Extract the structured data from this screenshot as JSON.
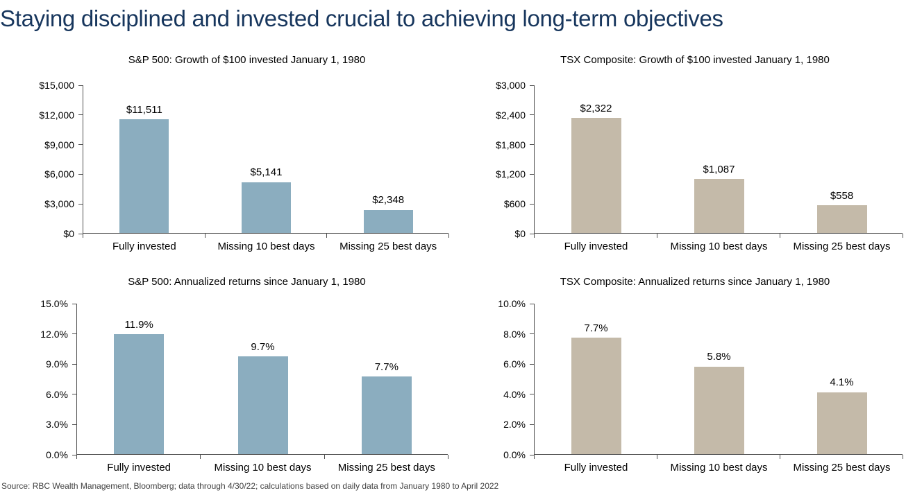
{
  "page": {
    "title": "Staying disciplined and invested crucial to achieving long-term objectives",
    "source_note": "Source: RBC Wealth Management, Bloomberg; data through 4/30/22; calculations based on daily data from January 1980 to April 2022",
    "colors": {
      "title_navy": "#17365d",
      "sp500_bar_blue": "#8badbf",
      "tsx_bar_tan": "#c4baa9",
      "axis_gray": "#4d4d4d",
      "label_black": "#000000",
      "background": "#ffffff"
    }
  },
  "chart_data": [
    {
      "id": "sp500-growth",
      "type": "bar",
      "title": "S&P 500: Growth of $100 invested January 1, 1980",
      "categories": [
        "Fully invested",
        "Missing 10 best days",
        "Missing 25 best days"
      ],
      "values": [
        11511,
        5141,
        2348
      ],
      "value_labels": [
        "$11,511",
        "$5,141",
        "$2,348"
      ],
      "xlabel": "",
      "ylabel": "",
      "ylim": [
        0,
        15000
      ],
      "ytick_step": 3000,
      "ytick_labels": [
        "$0",
        "$3,000",
        "$6,000",
        "$9,000",
        "$12,000",
        "$15,000"
      ],
      "bar_color": "#8badbf",
      "grid": false,
      "legend": "none"
    },
    {
      "id": "tsx-growth",
      "type": "bar",
      "title": "TSX Composite: Growth of $100 invested January 1, 1980",
      "categories": [
        "Fully invested",
        "Missing 10 best days",
        "Missing 25 best days"
      ],
      "values": [
        2322,
        1087,
        558
      ],
      "value_labels": [
        "$2,322",
        "$1,087",
        "$558"
      ],
      "xlabel": "",
      "ylabel": "",
      "ylim": [
        0,
        3000
      ],
      "ytick_step": 600,
      "ytick_labels": [
        "$0",
        "$600",
        "$1,200",
        "$1,800",
        "$2,400",
        "$3,000"
      ],
      "bar_color": "#c4baa9",
      "grid": false,
      "legend": "none"
    },
    {
      "id": "sp500-returns",
      "type": "bar",
      "title": "S&P 500: Annualized returns since January 1, 1980",
      "categories": [
        "Fully invested",
        "Missing 10 best days",
        "Missing 25 best days"
      ],
      "values": [
        11.9,
        9.7,
        7.7
      ],
      "value_labels": [
        "11.9%",
        "9.7%",
        "7.7%"
      ],
      "xlabel": "",
      "ylabel": "",
      "ylim": [
        0,
        15
      ],
      "ytick_step": 3,
      "ytick_labels": [
        "0.0%",
        "3.0%",
        "6.0%",
        "9.0%",
        "12.0%",
        "15.0%"
      ],
      "bar_color": "#8badbf",
      "grid": false,
      "legend": "none"
    },
    {
      "id": "tsx-returns",
      "type": "bar",
      "title": "TSX Composite: Annualized returns since January 1, 1980",
      "categories": [
        "Fully invested",
        "Missing 10 best days",
        "Missing 25 best days"
      ],
      "values": [
        7.7,
        5.8,
        4.1
      ],
      "value_labels": [
        "7.7%",
        "5.8%",
        "4.1%"
      ],
      "xlabel": "",
      "ylabel": "",
      "ylim": [
        0,
        10
      ],
      "ytick_step": 2,
      "ytick_labels": [
        "0.0%",
        "2.0%",
        "4.0%",
        "6.0%",
        "8.0%",
        "10.0%"
      ],
      "bar_color": "#c4baa9",
      "grid": false,
      "legend": "none"
    }
  ]
}
